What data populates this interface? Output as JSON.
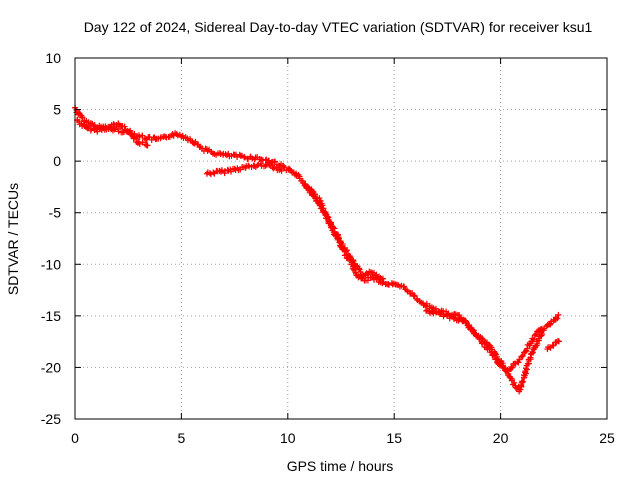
{
  "chart_data": {
    "type": "scatter",
    "title": "Day 122 of 2024, Sidereal Day-to-day VTEC variation (SDTVAR) for receiver ksu1",
    "xlabel": "GPS time / hours",
    "ylabel": "SDTVAR / TECUs",
    "xlim": [
      0,
      25
    ],
    "ylim": [
      -25,
      10
    ],
    "xticks": [
      0,
      5,
      10,
      15,
      20,
      25
    ],
    "yticks": [
      -25,
      -20,
      -15,
      -10,
      -5,
      0,
      5,
      10
    ],
    "grid": true,
    "marker": "+",
    "series": [
      {
        "name": "SDTVAR",
        "color": "#ff0000",
        "tracks": [
          {
            "x": [
              0.0,
              0.2,
              0.5,
              1.0,
              1.5,
              2.0,
              2.5,
              3.0,
              3.4,
              4.0,
              4.6,
              5.0,
              5.5,
              6.0,
              6.5,
              7.0,
              7.5,
              8.0,
              8.5,
              9.0,
              9.5,
              10.0,
              10.5,
              11.0,
              11.5,
              12.0,
              12.5,
              13.0,
              13.3,
              13.6,
              14.0,
              14.5,
              15.0,
              15.5,
              16.0,
              16.5,
              17.0,
              17.5,
              18.0,
              18.5,
              19.0,
              19.5,
              20.0,
              20.3,
              20.6,
              20.9,
              21.1,
              21.3,
              21.6,
              22.0,
              22.4,
              22.8
            ],
            "y": [
              5.2,
              4.5,
              3.8,
              3.4,
              3.2,
              3.0,
              2.8,
              2.5,
              2.2,
              2.1,
              2.6,
              2.5,
              2.0,
              1.2,
              0.8,
              0.6,
              0.5,
              0.4,
              0.3,
              0.1,
              -0.2,
              -0.8,
              -1.5,
              -2.8,
              -4.2,
              -6.2,
              -8.2,
              -10.0,
              -11.2,
              -11.5,
              -11.3,
              -11.8,
              -12.0,
              -12.3,
              -13.2,
              -14.0,
              -14.5,
              -14.8,
              -15.0,
              -16.0,
              -17.0,
              -18.0,
              -19.5,
              -20.5,
              -21.5,
              -22.2,
              -21.0,
              -19.5,
              -18.0,
              -16.5,
              -15.5,
              -15.0
            ]
          },
          {
            "x": [
              0.1,
              0.5,
              1.0,
              1.5,
              2.0,
              2.5,
              3.0,
              3.5
            ],
            "y": [
              4.0,
              3.2,
              3.0,
              3.2,
              3.6,
              3.0,
              1.8,
              1.6
            ]
          },
          {
            "x": [
              6.2,
              7.0,
              8.0,
              9.0,
              9.8
            ],
            "y": [
              -1.2,
              -1.0,
              -0.6,
              -0.3,
              -0.9
            ]
          },
          {
            "x": [
              10.8,
              11.5,
              12.0,
              12.5,
              13.0,
              13.5,
              14.0,
              14.5
            ],
            "y": [
              -2.2,
              -3.8,
              -6.0,
              -7.8,
              -9.6,
              -11.0,
              -10.8,
              -11.5
            ]
          },
          {
            "x": [
              16.5,
              17.5,
              18.3,
              19.0,
              19.6,
              20.0,
              20.4,
              20.8,
              21.2,
              21.6,
              22.0
            ],
            "y": [
              -14.5,
              -15.0,
              -15.5,
              -17.2,
              -18.6,
              -20.0,
              -20.2,
              -19.5,
              -18.2,
              -17.0,
              -16.0
            ]
          },
          {
            "x": [
              22.2,
              22.5,
              22.8
            ],
            "y": [
              -18.2,
              -17.8,
              -17.4
            ]
          }
        ]
      }
    ]
  }
}
